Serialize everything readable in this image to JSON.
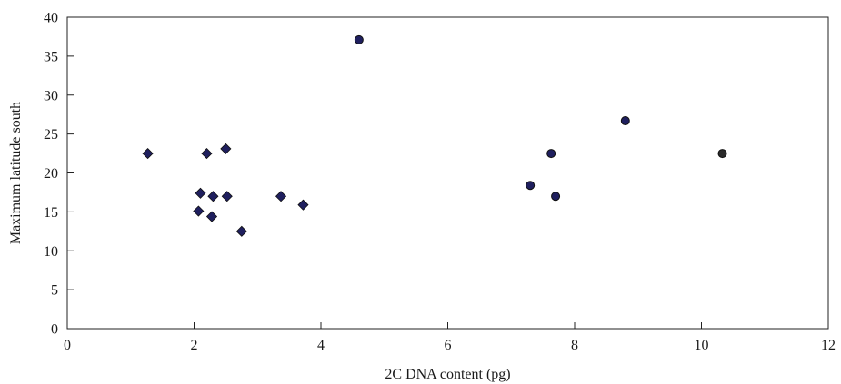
{
  "chart_data": {
    "type": "scatter",
    "title": "",
    "xlabel": "2C DNA content (pg)",
    "ylabel": "Maximum latitude south",
    "xlim": [
      0,
      12
    ],
    "ylim": [
      0,
      40
    ],
    "xticks": [
      0,
      2,
      4,
      6,
      8,
      10,
      12
    ],
    "yticks": [
      0,
      5,
      10,
      15,
      20,
      25,
      30,
      35,
      40
    ],
    "grid": false,
    "legend": "none",
    "series": [
      {
        "marker": "diamond",
        "color": "#1f1f5e",
        "x": [
          1.27,
          2.07,
          2.1,
          2.2,
          2.28,
          2.3,
          2.5,
          2.52,
          2.75,
          3.37,
          3.72
        ],
        "y": [
          22.5,
          15.1,
          17.4,
          22.5,
          14.4,
          17.0,
          23.1,
          17.0,
          12.5,
          17.0,
          15.9
        ]
      },
      {
        "marker": "circle",
        "color": "#1f1f5e",
        "x": [
          4.6,
          7.3,
          7.63,
          7.7,
          8.8
        ],
        "y": [
          37.1,
          18.4,
          22.5,
          17.0,
          26.7
        ]
      },
      {
        "marker": "circle",
        "color": "#2a2a2a",
        "x": [
          10.33
        ],
        "y": [
          22.5
        ]
      }
    ]
  }
}
